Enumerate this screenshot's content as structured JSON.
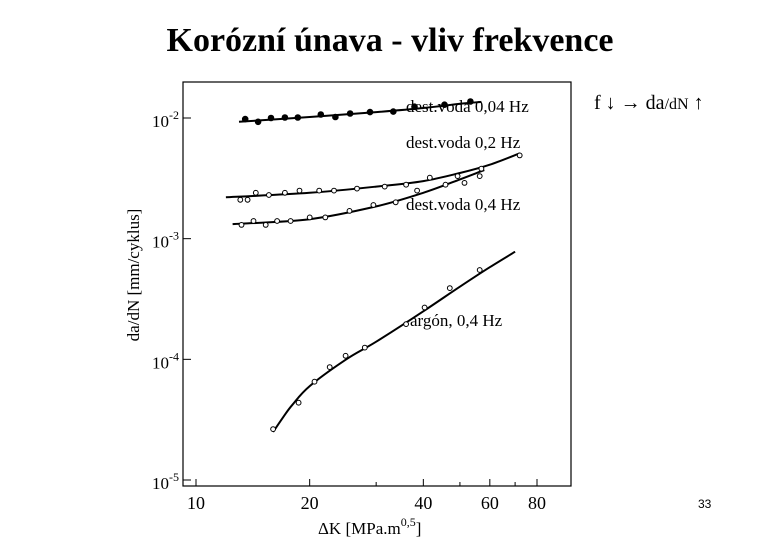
{
  "slide": {
    "title": "Korózní únava - vliv frekvence",
    "relation": {
      "part1": "f",
      "down_arrow": "↓",
      "right_arrow": "→",
      "part2": "da",
      "part3": "/dN",
      "up_arrow": "↑"
    },
    "page_number": "33"
  },
  "chart_data": {
    "type": "scatter",
    "title": "",
    "xlabel": "ΔK [MPa.m",
    "xlabel_sup": "0,5",
    "xlabel_end": "]",
    "ylabel": "da/dN [mm/cyklus]",
    "x_scale": "log",
    "y_scale": "log",
    "xlim": [
      10,
      100
    ],
    "ylim": [
      1e-05,
      0.03
    ],
    "x_ticks": [
      {
        "value": 10,
        "label": "10"
      },
      {
        "value": 20,
        "label": "20"
      },
      {
        "value": 40,
        "label": "40"
      },
      {
        "value": 60,
        "label": "60"
      },
      {
        "value": 80,
        "label": "80"
      }
    ],
    "y_ticks": [
      {
        "value": 0.01,
        "base": "10",
        "exp": "-2"
      },
      {
        "value": 0.001,
        "base": "10",
        "exp": "-3"
      },
      {
        "value": 0.0001,
        "base": "10",
        "exp": "-4"
      },
      {
        "value": 1e-05,
        "base": "10",
        "exp": "-5"
      }
    ],
    "grid": false,
    "legend": "inline labels",
    "series": [
      {
        "name": "dest.voda 0,04 Hz",
        "marker": "filled",
        "points": [
          [
            13.5,
            0.0098
          ],
          [
            14.6,
            0.0093
          ],
          [
            15.8,
            0.01
          ],
          [
            17.2,
            0.0101
          ],
          [
            18.6,
            0.0101
          ],
          [
            21.4,
            0.0107
          ],
          [
            23.4,
            0.0102
          ],
          [
            25.6,
            0.0109
          ],
          [
            28.9,
            0.0112
          ],
          [
            33.3,
            0.0113
          ],
          [
            37.9,
            0.0124
          ],
          [
            45.5,
            0.0129
          ],
          [
            53.3,
            0.0137
          ]
        ],
        "curve": [
          [
            13,
            0.0093
          ],
          [
            20,
            0.0102
          ],
          [
            30,
            0.0112
          ],
          [
            40,
            0.0121
          ],
          [
            50,
            0.0131
          ],
          [
            57,
            0.0136
          ]
        ]
      },
      {
        "name": "dest.voda 0,2 Hz",
        "marker": "open",
        "points": [
          [
            13.1,
            0.0021
          ],
          [
            13.7,
            0.0021
          ],
          [
            14.4,
            0.0024
          ],
          [
            15.6,
            0.0023
          ],
          [
            17.2,
            0.0024
          ],
          [
            18.8,
            0.0025
          ],
          [
            21.2,
            0.0025
          ],
          [
            23.2,
            0.0025
          ],
          [
            26.7,
            0.0026
          ],
          [
            31.6,
            0.0027
          ],
          [
            36.0,
            0.0028
          ],
          [
            41.6,
            0.0032
          ],
          [
            49.3,
            0.0033
          ],
          [
            57.0,
            0.0038
          ],
          [
            72.0,
            0.0049
          ]
        ],
        "curve": [
          [
            12,
            0.0022
          ],
          [
            20,
            0.0024
          ],
          [
            30,
            0.0027
          ],
          [
            40,
            0.003
          ],
          [
            50,
            0.0035
          ],
          [
            60,
            0.0041
          ],
          [
            72,
            0.0051
          ]
        ]
      },
      {
        "name": "dest.voda 0,4 Hz",
        "marker": "open",
        "points": [
          [
            13.2,
            0.0013
          ],
          [
            14.2,
            0.0014
          ],
          [
            15.3,
            0.0013
          ],
          [
            16.4,
            0.0014
          ],
          [
            17.8,
            0.0014
          ],
          [
            20.0,
            0.0015
          ],
          [
            22.0,
            0.0015
          ],
          [
            25.5,
            0.0017
          ],
          [
            29.5,
            0.0019
          ],
          [
            33.8,
            0.002
          ],
          [
            38.5,
            0.0025
          ],
          [
            45.8,
            0.0028
          ],
          [
            51.4,
            0.0029
          ],
          [
            56.4,
            0.0033
          ]
        ],
        "curve": [
          [
            12.5,
            0.00132
          ],
          [
            20,
            0.00145
          ],
          [
            30,
            0.00185
          ],
          [
            40,
            0.0024
          ],
          [
            50,
            0.0031
          ],
          [
            58,
            0.0037
          ]
        ]
      },
      {
        "name": "argón, 0,4 Hz",
        "marker": "open",
        "points": [
          [
            16.0,
            2.64e-05
          ],
          [
            18.7,
            4.37e-05
          ],
          [
            20.6,
            6.53e-05
          ],
          [
            22.6,
            8.62e-05
          ],
          [
            24.9,
            0.000107
          ],
          [
            28.0,
            0.000125
          ],
          [
            36.0,
            0.000196
          ],
          [
            40.3,
            0.000269
          ],
          [
            47.0,
            0.000389
          ],
          [
            56.4,
            0.00055
          ]
        ],
        "curve": [
          [
            16,
            2.5e-05
          ],
          [
            17,
            3.3e-05
          ],
          [
            18,
            4.2e-05
          ],
          [
            20,
            6e-05
          ],
          [
            25,
            0.0001
          ],
          [
            30,
            0.00014
          ],
          [
            40,
            0.00025
          ],
          [
            50,
            0.0004
          ],
          [
            60,
            0.00058
          ],
          [
            70,
            0.00078
          ]
        ]
      }
    ]
  }
}
